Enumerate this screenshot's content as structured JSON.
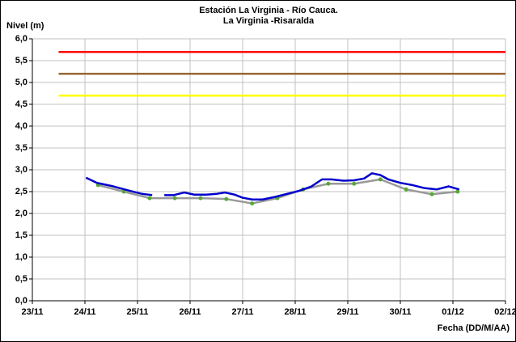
{
  "chart_data": {
    "type": "line",
    "title": "Estación La Virginia  - Río Cauca.",
    "subtitle": "La Virginia -Risaralda",
    "ylabel": "Nivel (m)",
    "xlabel": "Fecha (DD/M/AA)",
    "xlim": [
      0,
      9
    ],
    "xticks": [
      {
        "value": 0,
        "label": "23/11"
      },
      {
        "value": 1,
        "label": "24/11"
      },
      {
        "value": 2,
        "label": "25/11"
      },
      {
        "value": 3,
        "label": "26/11"
      },
      {
        "value": 4,
        "label": "27/11"
      },
      {
        "value": 5,
        "label": "28/11"
      },
      {
        "value": 6,
        "label": "29/11"
      },
      {
        "value": 7,
        "label": "30/11"
      },
      {
        "value": 8,
        "label": "01/12"
      },
      {
        "value": 9,
        "label": "02/12"
      }
    ],
    "ylim": [
      0,
      6
    ],
    "yticks": [
      {
        "value": 0,
        "label": "0,0"
      },
      {
        "value": 0.5,
        "label": "0,5"
      },
      {
        "value": 1,
        "label": "1,0"
      },
      {
        "value": 1.5,
        "label": "1,5"
      },
      {
        "value": 2,
        "label": "2,0"
      },
      {
        "value": 2.5,
        "label": "2,5"
      },
      {
        "value": 3,
        "label": "3,0"
      },
      {
        "value": 3.5,
        "label": "3,5"
      },
      {
        "value": 4,
        "label": "4,0"
      },
      {
        "value": 4.5,
        "label": "4,5"
      },
      {
        "value": 5,
        "label": "5,0"
      },
      {
        "value": 5.5,
        "label": "5,5"
      },
      {
        "value": 6,
        "label": "6,0"
      }
    ],
    "grid": true,
    "series": [
      {
        "color": "#ff0000",
        "x": [
          0.5,
          9
        ],
        "values": [
          5.7,
          5.7
        ]
      },
      {
        "color": "#996633",
        "x": [
          0.5,
          9
        ],
        "values": [
          5.2,
          5.2
        ]
      },
      {
        "color": "#ffff00",
        "x": [
          0.5,
          9
        ],
        "values": [
          4.7,
          4.7
        ]
      },
      {
        "color": "#999999",
        "marker_color": "#55aa33",
        "markers": true,
        "x": [
          1.25,
          1.74,
          2.23,
          2.71,
          3.2,
          3.69,
          4.18,
          4.66,
          5.15,
          5.63,
          6.12,
          6.62,
          7.11,
          7.6,
          8.09
        ],
        "values": [
          2.65,
          2.5,
          2.35,
          2.35,
          2.35,
          2.33,
          2.23,
          2.35,
          2.55,
          2.68,
          2.68,
          2.78,
          2.55,
          2.44,
          2.5
        ]
      },
      {
        "color": "#0000cc",
        "x": [
          1.02,
          1.23,
          1.54,
          1.85,
          2.08,
          2.28,
          2.4,
          2.51,
          2.69,
          2.89,
          3.08,
          3.31,
          3.51,
          3.66,
          3.85,
          4.0,
          4.18,
          4.38,
          4.62,
          4.85,
          5.08,
          5.31,
          5.51,
          5.69,
          5.92,
          6.12,
          6.31,
          6.46,
          6.62,
          6.77,
          7.0,
          7.23,
          7.46,
          7.69,
          7.92,
          8.12
        ],
        "values": [
          2.82,
          2.7,
          2.62,
          2.52,
          2.45,
          2.42,
          null,
          2.42,
          2.42,
          2.48,
          2.43,
          2.43,
          2.45,
          2.48,
          2.43,
          2.36,
          2.32,
          2.32,
          2.38,
          2.45,
          2.52,
          2.62,
          2.78,
          2.78,
          2.75,
          2.76,
          2.8,
          2.92,
          2.88,
          2.78,
          2.7,
          2.65,
          2.58,
          2.55,
          2.62,
          2.55
        ]
      }
    ]
  }
}
